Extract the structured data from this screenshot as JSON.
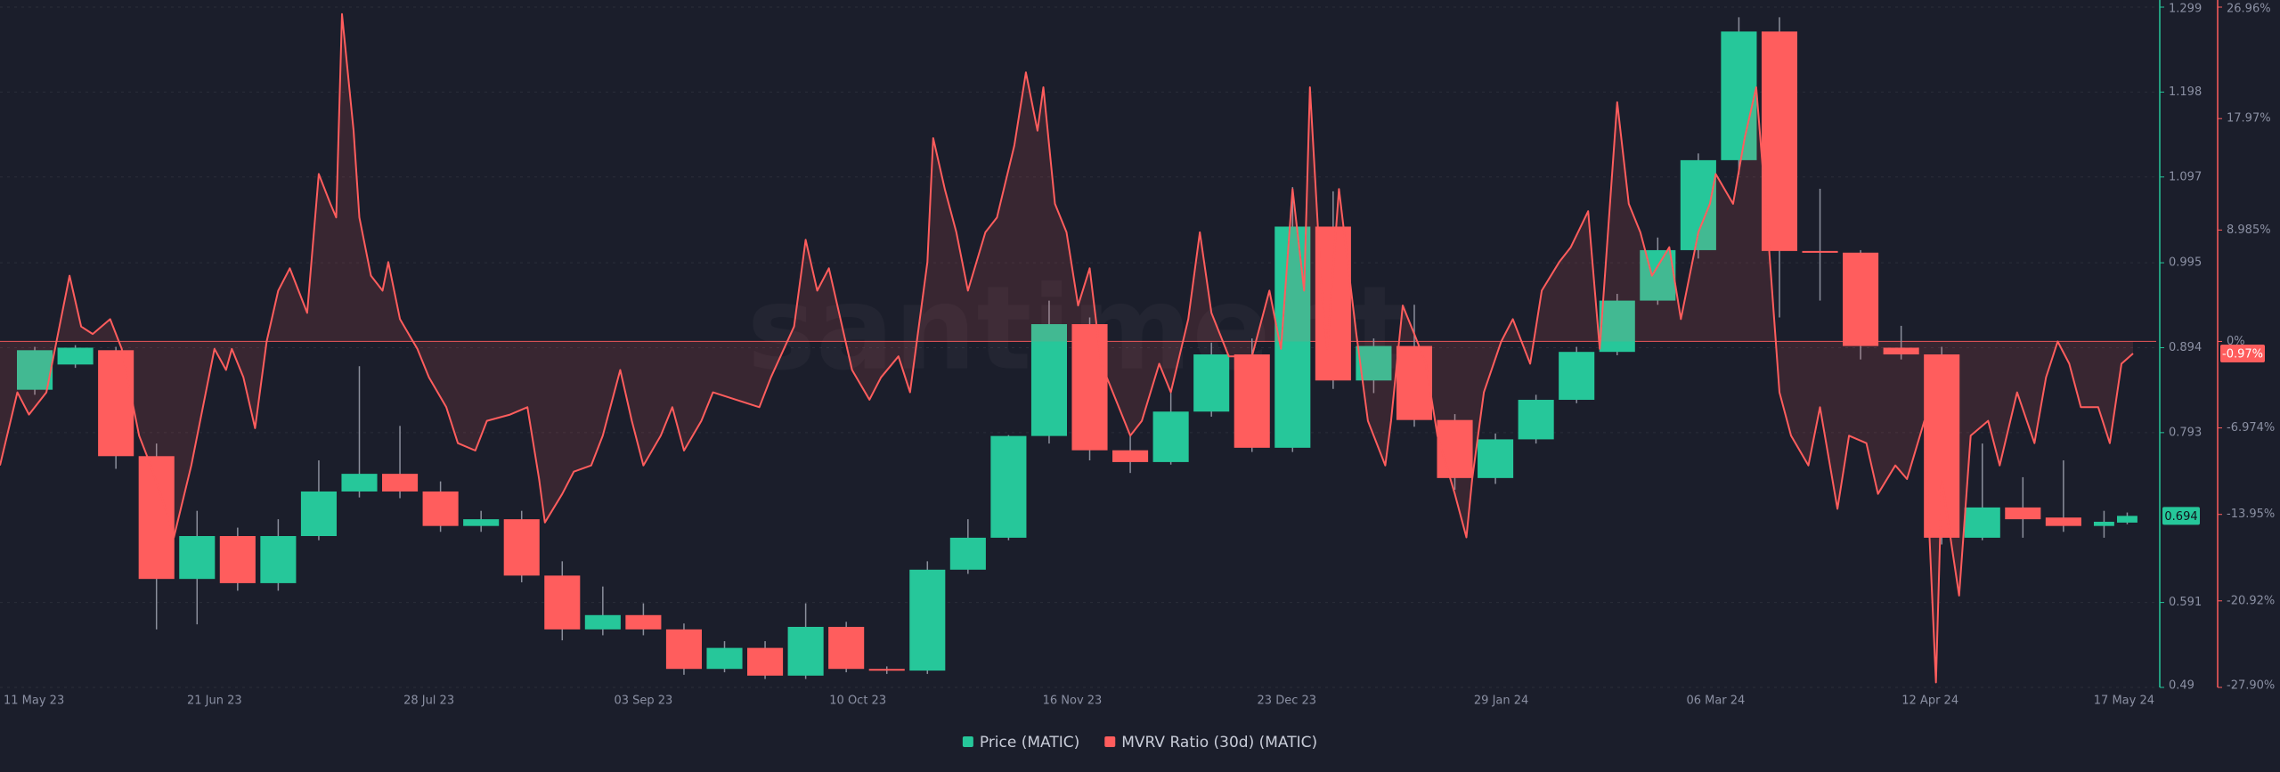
{
  "chart_data": {
    "type": "candlestick",
    "watermark": "santiment",
    "xlim": [
      "2023-05-15",
      "2024-05-21"
    ],
    "xticks": [
      {
        "value": "2023-05-11",
        "label": "11 May 23"
      },
      {
        "value": "2023-06-21",
        "label": "21 Jun 23"
      },
      {
        "value": "2023-07-28",
        "label": "28 Jul 23"
      },
      {
        "value": "2023-09-03",
        "label": "03 Sep 23"
      },
      {
        "value": "2023-10-10",
        "label": "10 Oct 23"
      },
      {
        "value": "2023-11-16",
        "label": "16 Nov 23"
      },
      {
        "value": "2023-12-23",
        "label": "23 Dec 23"
      },
      {
        "value": "2024-01-29",
        "label": "29 Jan 24"
      },
      {
        "value": "2024-03-06",
        "label": "06 Mar 24"
      },
      {
        "value": "2024-04-12",
        "label": "12 Apr 24"
      },
      {
        "value": "2024-05-17",
        "label": "17 May 24"
      }
    ],
    "ylim": [
      0.49,
      1.299
    ],
    "yticks": [
      1.299,
      1.198,
      1.097,
      0.995,
      0.894,
      0.793,
      0.591,
      0.49
    ],
    "y2lim": [
      -27.9,
      26.96
    ],
    "y2ticks": [
      {
        "value": 26.96,
        "label": "26.96%"
      },
      {
        "value": 17.97,
        "label": "17.97%"
      },
      {
        "value": 8.985,
        "label": "8.985%"
      },
      {
        "value": 0,
        "label": "0%"
      },
      {
        "value": -6.974,
        "label": "-6.974%"
      },
      {
        "value": -13.95,
        "label": "-13.95%"
      },
      {
        "value": -20.92,
        "label": "-20.92%"
      },
      {
        "value": -27.9,
        "label": "-27.90%"
      }
    ],
    "grid": true,
    "series": [
      {
        "type": "candlestick",
        "name": "Price (MATIC)",
        "axis": "y",
        "color": "#26c79a",
        "color_up": "#26c79a",
        "color_down": "#ff5d5d",
        "x": [
          "2023-05-21",
          "2023-05-28",
          "2023-06-04",
          "2023-06-11",
          "2023-06-18",
          "2023-06-25",
          "2023-07-02",
          "2023-07-09",
          "2023-07-16",
          "2023-07-23",
          "2023-07-30",
          "2023-08-06",
          "2023-08-13",
          "2023-08-20",
          "2023-08-27",
          "2023-09-03",
          "2023-09-10",
          "2023-09-17",
          "2023-09-24",
          "2023-10-01",
          "2023-10-08",
          "2023-10-15",
          "2023-10-22",
          "2023-10-29",
          "2023-11-05",
          "2023-11-12",
          "2023-11-19",
          "2023-11-26",
          "2023-12-03",
          "2023-12-10",
          "2023-12-17",
          "2023-12-24",
          "2023-12-31",
          "2024-01-07",
          "2024-01-14",
          "2024-01-21",
          "2024-01-28",
          "2024-02-04",
          "2024-02-11",
          "2024-02-18",
          "2024-02-25",
          "2024-03-03",
          "2024-03-10",
          "2024-03-17",
          "2024-03-24",
          "2024-03-31",
          "2024-04-07",
          "2024-04-14",
          "2024-04-21",
          "2024-04-28",
          "2024-05-05",
          "2024-05-12",
          "2024-05-16"
        ],
        "open": [
          0.844,
          0.874,
          0.891,
          0.765,
          0.619,
          0.67,
          0.614,
          0.67,
          0.723,
          0.744,
          0.723,
          0.682,
          0.69,
          0.623,
          0.559,
          0.576,
          0.559,
          0.512,
          0.537,
          0.504,
          0.562,
          0.512,
          0.51,
          0.63,
          0.668,
          0.789,
          0.922,
          0.772,
          0.758,
          0.818,
          0.886,
          0.775,
          1.038,
          0.855,
          0.896,
          0.808,
          0.739,
          0.785,
          0.832,
          0.889,
          0.95,
          1.01,
          1.117,
          1.27,
          1.009,
          1.007,
          0.894,
          0.886,
          0.668,
          0.704,
          0.692,
          0.682,
          0.686
        ],
        "high": [
          0.895,
          0.897,
          0.895,
          0.78,
          0.7,
          0.68,
          0.69,
          0.76,
          0.872,
          0.801,
          0.735,
          0.7,
          0.7,
          0.64,
          0.61,
          0.59,
          0.566,
          0.545,
          0.545,
          0.59,
          0.568,
          0.515,
          0.64,
          0.69,
          0.79,
          0.95,
          0.93,
          0.79,
          0.84,
          0.9,
          0.905,
          1.085,
          1.08,
          0.905,
          0.945,
          0.815,
          0.792,
          0.838,
          0.895,
          0.958,
          1.025,
          1.125,
          1.287,
          1.287,
          1.083,
          1.01,
          0.92,
          0.895,
          0.78,
          0.74,
          0.76,
          0.7,
          0.698
        ],
        "low": [
          0.838,
          0.87,
          0.75,
          0.559,
          0.565,
          0.605,
          0.605,
          0.665,
          0.716,
          0.715,
          0.675,
          0.675,
          0.615,
          0.546,
          0.552,
          0.552,
          0.505,
          0.508,
          0.5,
          0.5,
          0.508,
          0.506,
          0.506,
          0.625,
          0.665,
          0.78,
          0.76,
          0.745,
          0.755,
          0.812,
          0.77,
          0.77,
          0.845,
          0.84,
          0.8,
          0.725,
          0.732,
          0.78,
          0.828,
          0.885,
          0.945,
          1.0,
          1.1,
          0.93,
          0.95,
          0.88,
          0.88,
          0.66,
          0.665,
          0.668,
          0.675,
          0.668,
          0.684
        ],
        "close": [
          0.891,
          0.894,
          0.765,
          0.619,
          0.67,
          0.614,
          0.67,
          0.723,
          0.744,
          0.723,
          0.682,
          0.69,
          0.623,
          0.559,
          0.576,
          0.559,
          0.512,
          0.537,
          0.504,
          0.562,
          0.512,
          0.51,
          0.63,
          0.668,
          0.789,
          0.922,
          0.772,
          0.758,
          0.818,
          0.886,
          0.775,
          1.038,
          0.855,
          0.896,
          0.808,
          0.739,
          0.785,
          0.832,
          0.889,
          0.95,
          1.01,
          1.117,
          1.27,
          1.009,
          1.008,
          0.896,
          0.886,
          0.668,
          0.704,
          0.69,
          0.682,
          0.687,
          0.694
        ]
      },
      {
        "type": "line",
        "name": "MVRV Ratio (30d) (MATIC)",
        "axis": "y2",
        "color": "#ff5d5d",
        "current_label": "-0.97%",
        "x": [
          "2023-05-15",
          "2023-05-18",
          "2023-05-20",
          "2023-05-23",
          "2023-05-25",
          "2023-05-27",
          "2023-05-29",
          "2023-05-31",
          "2023-06-03",
          "2023-06-05",
          "2023-06-08",
          "2023-06-10",
          "2023-06-13",
          "2023-06-14",
          "2023-06-17",
          "2023-06-19",
          "2023-06-21",
          "2023-06-23",
          "2023-06-24",
          "2023-06-26",
          "2023-06-28",
          "2023-06-30",
          "2023-07-02",
          "2023-07-04",
          "2023-07-07",
          "2023-07-09",
          "2023-07-11",
          "2023-07-12",
          "2023-07-13",
          "2023-07-15",
          "2023-07-16",
          "2023-07-18",
          "2023-07-20",
          "2023-07-21",
          "2023-07-23",
          "2023-07-26",
          "2023-07-28",
          "2023-07-31",
          "2023-08-02",
          "2023-08-05",
          "2023-08-07",
          "2023-08-11",
          "2023-08-14",
          "2023-08-16",
          "2023-08-17",
          "2023-08-20",
          "2023-08-22",
          "2023-08-25",
          "2023-08-27",
          "2023-08-30",
          "2023-09-01",
          "2023-09-03",
          "2023-09-06",
          "2023-09-08",
          "2023-09-10",
          "2023-09-13",
          "2023-09-15",
          "2023-09-19",
          "2023-09-23",
          "2023-09-25",
          "2023-09-29",
          "2023-10-01",
          "2023-10-03",
          "2023-10-05",
          "2023-10-07",
          "2023-10-09",
          "2023-10-12",
          "2023-10-14",
          "2023-10-17",
          "2023-10-19",
          "2023-10-22",
          "2023-10-23",
          "2023-10-25",
          "2023-10-27",
          "2023-10-29",
          "2023-11-01",
          "2023-11-03",
          "2023-11-06",
          "2023-11-08",
          "2023-11-10",
          "2023-11-11",
          "2023-11-13",
          "2023-11-15",
          "2023-11-17",
          "2023-11-19",
          "2023-11-21",
          "2023-11-23",
          "2023-11-26",
          "2023-11-28",
          "2023-12-01",
          "2023-12-03",
          "2023-12-06",
          "2023-12-08",
          "2023-12-10",
          "2023-12-13",
          "2023-12-17",
          "2023-12-20",
          "2023-12-22",
          "2023-12-24",
          "2023-12-26",
          "2023-12-27",
          "2023-12-29",
          "2023-12-30",
          "2024-01-01",
          "2024-01-04",
          "2024-01-06",
          "2024-01-09",
          "2024-01-10",
          "2024-01-12",
          "2024-01-14",
          "2024-01-16",
          "2024-01-18",
          "2024-01-21",
          "2024-01-23",
          "2024-01-24",
          "2024-01-26",
          "2024-01-29",
          "2024-01-31",
          "2024-02-03",
          "2024-02-05",
          "2024-02-08",
          "2024-02-10",
          "2024-02-13",
          "2024-02-15",
          "2024-02-18",
          "2024-02-20",
          "2024-02-22",
          "2024-02-24",
          "2024-02-27",
          "2024-02-29",
          "2024-03-03",
          "2024-03-05",
          "2024-03-06",
          "2024-03-09",
          "2024-03-11",
          "2024-03-13",
          "2024-03-15",
          "2024-03-17",
          "2024-03-19",
          "2024-03-22",
          "2024-03-24",
          "2024-03-27",
          "2024-03-29",
          "2024-04-01",
          "2024-04-03",
          "2024-04-06",
          "2024-04-08",
          "2024-04-11",
          "2024-04-13",
          "2024-04-14",
          "2024-04-17",
          "2024-04-19",
          "2024-04-22",
          "2024-04-24",
          "2024-04-27",
          "2024-04-30",
          "2024-05-02",
          "2024-05-04",
          "2024-05-06",
          "2024-05-08",
          "2024-05-11",
          "2024-05-13",
          "2024-05-15",
          "2024-05-17"
        ],
        "values": [
          -10.0,
          -4.1,
          -5.9,
          -4.1,
          0.6,
          5.3,
          1.2,
          0.6,
          1.8,
          -0.6,
          -7.6,
          -10.0,
          -14.1,
          -15.8,
          -10.0,
          -5.3,
          -0.6,
          -2.3,
          -0.6,
          -2.9,
          -7.0,
          0,
          4.1,
          5.9,
          2.3,
          13.5,
          11.1,
          10.0,
          26.4,
          17.0,
          10.0,
          5.3,
          4.1,
          6.4,
          1.8,
          -0.6,
          -2.9,
          -5.3,
          -8.2,
          -8.8,
          -6.4,
          -5.9,
          -5.3,
          -11.1,
          -14.6,
          -12.3,
          -10.5,
          -10.0,
          -7.6,
          -2.3,
          -6.4,
          -10.0,
          -7.6,
          -5.3,
          -8.8,
          -6.4,
          -4.1,
          -4.7,
          -5.3,
          -2.9,
          1.2,
          8.2,
          4.1,
          5.9,
          1.8,
          -2.3,
          -4.7,
          -2.9,
          -1.2,
          -4.1,
          6.4,
          16.4,
          12.3,
          8.8,
          4.1,
          8.8,
          10.0,
          15.8,
          21.7,
          17.0,
          20.5,
          11.1,
          8.8,
          2.9,
          5.9,
          -1.8,
          -4.1,
          -7.6,
          -6.4,
          -1.8,
          -4.1,
          1.8,
          8.8,
          2.3,
          -1.2,
          -1.2,
          4.1,
          -0.6,
          12.3,
          4.1,
          20.5,
          4.1,
          -0.6,
          12.3,
          0.6,
          -6.4,
          -10.0,
          -6.4,
          2.9,
          0.6,
          -1.8,
          -7.6,
          -12.3,
          -15.8,
          -11.1,
          -4.1,
          0,
          1.8,
          -1.8,
          4.1,
          6.4,
          7.6,
          10.5,
          -0.6,
          19.3,
          11.1,
          8.8,
          5.3,
          7.6,
          1.8,
          8.8,
          11.1,
          13.5,
          11.1,
          16.4,
          20.5,
          8.8,
          -4.1,
          -7.6,
          -10.0,
          -5.3,
          -13.5,
          -7.6,
          -8.2,
          -12.3,
          -10.0,
          -11.1,
          -6.4,
          -27.5,
          -11.1,
          -20.5,
          -7.6,
          -6.4,
          -10.0,
          -4.1,
          -8.2,
          -2.9,
          0,
          -1.8,
          -5.3,
          -5.3,
          -8.2,
          -1.8,
          -0.97
        ]
      }
    ]
  }
}
